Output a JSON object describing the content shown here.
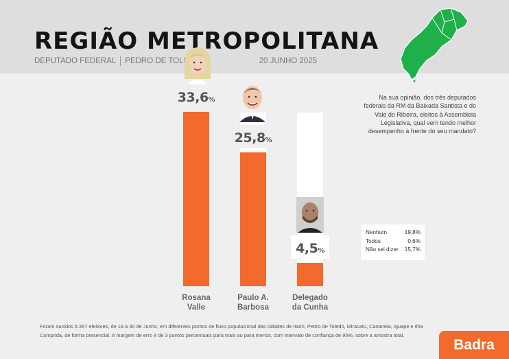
{
  "header": {
    "title": "REGIÃO METROPOLITANA",
    "role": "DEPUTADO FEDERAL",
    "location": "PEDRO DE TOLEDO",
    "date": "20 JUNHO 2025"
  },
  "question": "Na sua opinião, dos três deputados federais da RM da Baixada Santista e do Vale do Ribeira, eleitos à Assembleia Legislativa, qual vem tendo melhor desempenho à frente do seu mandato?",
  "chart_data": {
    "type": "bar",
    "categories": [
      "Rosana Valle",
      "Paulo A. Barbosa",
      "Delegado da Cunha"
    ],
    "category_lines": [
      [
        "Rosana",
        "Valle"
      ],
      [
        "Paulo A.",
        "Barbosa"
      ],
      [
        "Delegado",
        "da Cunha"
      ]
    ],
    "values": [
      33.6,
      25.8,
      4.5
    ],
    "value_labels": [
      "33,6",
      "25,8",
      "4,5"
    ],
    "unit": "%",
    "ylim": [
      0,
      33.6
    ],
    "bar_color": "#f26a2e",
    "background_bar_color": "#ffffff"
  },
  "other_answers": [
    {
      "label": "Nenhum",
      "value": "19,8%"
    },
    {
      "label": "Todos",
      "value": "0,6%"
    },
    {
      "label": "Não sei dizer",
      "value": "15,7%"
    }
  ],
  "note": "Foram ouvidos 6.357 eleitores, de 18 a 30 de Junho, em diferentes pontos de fluxo populacional das cidades de Itariri, Pedro de Toledo, Miracatu, Cananéia, Iguape e Ilha Comprida, de forma presencial. A margem de erro é de 3 pontos percentuais para mais ou para menos, com intervalo de confiança de 95%, sobre a amostra total.",
  "brand": "Badra",
  "colors": {
    "accent": "#f26a2e",
    "map_fill": "#1fb04a",
    "header_band": "#dedede",
    "background": "#efefef"
  }
}
